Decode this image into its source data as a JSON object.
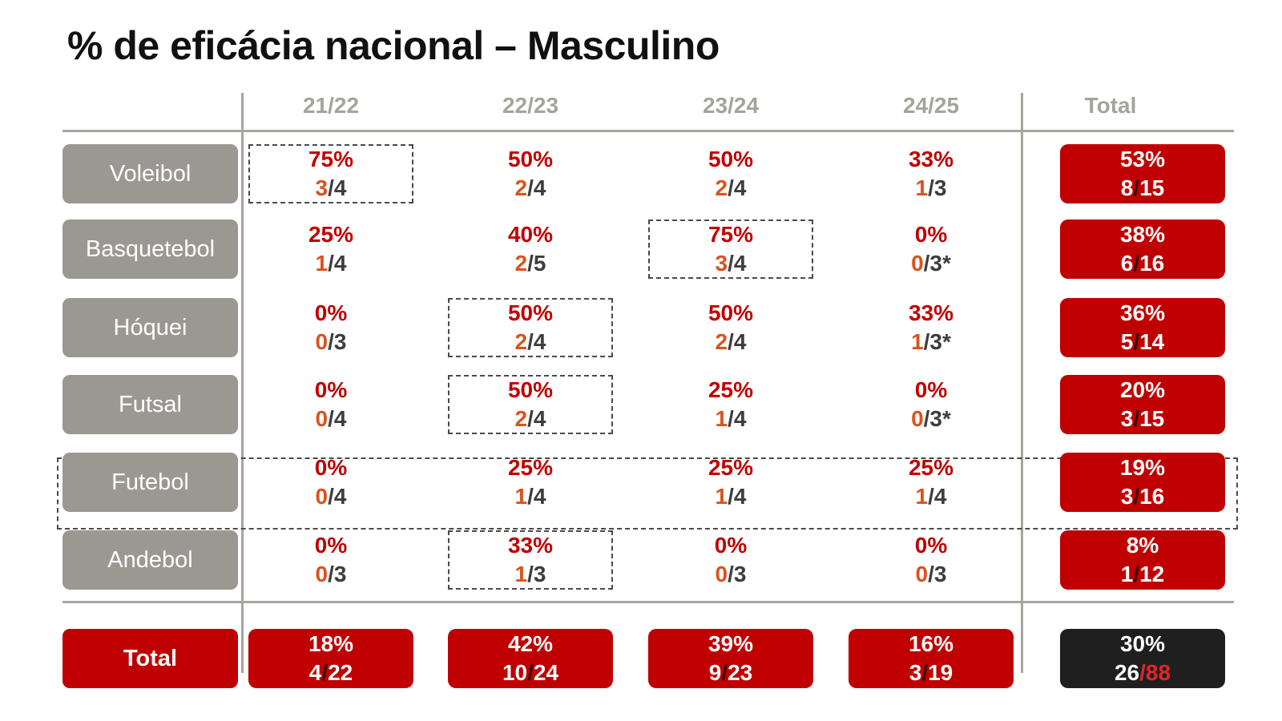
{
  "title": "% de eficácia nacional – Masculino",
  "chart_data": {
    "type": "table",
    "title": "% de eficácia nacional – Masculino",
    "columns": [
      "21/22",
      "22/23",
      "23/24",
      "24/25",
      "Total"
    ],
    "rows": [
      {
        "sport": "Voleibol",
        "cells": [
          {
            "pct": "75%",
            "num": "3",
            "den": "/4"
          },
          {
            "pct": "50%",
            "num": "2",
            "den": "/4"
          },
          {
            "pct": "50%",
            "num": "2",
            "den": "/4"
          },
          {
            "pct": "33%",
            "num": "1",
            "den": "/3"
          }
        ],
        "total": {
          "pct": "53%",
          "num": "8",
          "den": "15"
        }
      },
      {
        "sport": "Basquetebol",
        "cells": [
          {
            "pct": "25%",
            "num": "1",
            "den": "/4"
          },
          {
            "pct": "40%",
            "num": "2",
            "den": "/5"
          },
          {
            "pct": "75%",
            "num": "3",
            "den": "/4"
          },
          {
            "pct": "0%",
            "num": "0",
            "den": "/3*"
          }
        ],
        "total": {
          "pct": "38%",
          "num": "6",
          "den": "16"
        }
      },
      {
        "sport": "Hóquei",
        "cells": [
          {
            "pct": "0%",
            "num": "0",
            "den": "/3"
          },
          {
            "pct": "50%",
            "num": "2",
            "den": "/4"
          },
          {
            "pct": "50%",
            "num": "2",
            "den": "/4"
          },
          {
            "pct": "33%",
            "num": "1",
            "den": "/3*"
          }
        ],
        "total": {
          "pct": "36%",
          "num": "5",
          "den": "14"
        }
      },
      {
        "sport": "Futsal",
        "cells": [
          {
            "pct": "0%",
            "num": "0",
            "den": "/4"
          },
          {
            "pct": "50%",
            "num": "2",
            "den": "/4"
          },
          {
            "pct": "25%",
            "num": "1",
            "den": "/4"
          },
          {
            "pct": "0%",
            "num": "0",
            "den": "/3*"
          }
        ],
        "total": {
          "pct": "20%",
          "num": "3",
          "den": "15"
        }
      },
      {
        "sport": "Futebol",
        "cells": [
          {
            "pct": "0%",
            "num": "0",
            "den": "/4"
          },
          {
            "pct": "25%",
            "num": "1",
            "den": "/4"
          },
          {
            "pct": "25%",
            "num": "1",
            "den": "/4"
          },
          {
            "pct": "25%",
            "num": "1",
            "den": "/4"
          }
        ],
        "total": {
          "pct": "19%",
          "num": "3",
          "den": "16"
        }
      },
      {
        "sport": "Andebol",
        "cells": [
          {
            "pct": "0%",
            "num": "0",
            "den": "/3"
          },
          {
            "pct": "33%",
            "num": "1",
            "den": "/3"
          },
          {
            "pct": "0%",
            "num": "0",
            "den": "/3"
          },
          {
            "pct": "0%",
            "num": "0",
            "den": "/3"
          }
        ],
        "total": {
          "pct": "8%",
          "num": "1",
          "den": "12"
        }
      }
    ],
    "total_row": {
      "label": "Total",
      "cells": [
        {
          "pct": "18%",
          "num": "4",
          "den": "22"
        },
        {
          "pct": "42%",
          "num": "10",
          "den": "24"
        },
        {
          "pct": "39%",
          "num": "9",
          "den": "23"
        },
        {
          "pct": "16%",
          "num": "3",
          "den": "19"
        }
      ],
      "grand": {
        "pct": "30%",
        "num": "26",
        "den": "88"
      }
    },
    "highlighted_cells": [
      [
        0,
        0
      ],
      [
        1,
        2
      ],
      [
        2,
        1
      ],
      [
        3,
        1
      ],
      [
        5,
        1
      ]
    ],
    "highlighted_rows": [
      4
    ],
    "colors": {
      "accent_red": "#c00000",
      "numerator_orange": "#d9531e",
      "label_gray": "#9a9890",
      "grand_total_dark": "#1f1f1f"
    }
  }
}
